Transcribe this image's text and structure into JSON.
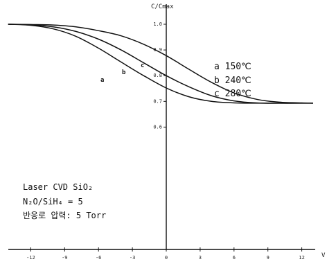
{
  "chart_data": {
    "type": "line",
    "ylabel": "C/Cmax",
    "xlabel": "V",
    "xlim": [
      -14,
      14
    ],
    "ylim": [
      0.53,
      1.03
    ],
    "xticks": [
      "-12",
      "-9",
      "-6",
      "-3",
      "0",
      "3",
      "6",
      "9",
      "12"
    ],
    "yticks": [
      "1.0",
      "0.9",
      "0.8",
      "0.7",
      "0.6"
    ],
    "series": [
      {
        "name": "a",
        "label": "a 150℃",
        "x": [
          -14,
          -12,
          -10,
          -8,
          -6,
          -4,
          -2,
          0,
          2,
          4,
          6,
          8,
          10,
          12,
          13
        ],
        "y": [
          1.0,
          0.999,
          0.997,
          0.99,
          0.975,
          0.955,
          0.922,
          0.878,
          0.825,
          0.774,
          0.733,
          0.708,
          0.697,
          0.694,
          0.693
        ]
      },
      {
        "name": "b",
        "label": "b 240℃",
        "x": [
          -14,
          -12,
          -10,
          -8,
          -6,
          -4,
          -2,
          0,
          2,
          4,
          6,
          8,
          10,
          12,
          13
        ],
        "y": [
          1.0,
          0.998,
          0.99,
          0.972,
          0.942,
          0.9,
          0.85,
          0.8,
          0.757,
          0.722,
          0.702,
          0.694,
          0.693,
          0.693,
          0.693
        ]
      },
      {
        "name": "c",
        "label": "c 280℃",
        "x": [
          -14,
          -12,
          -10,
          -8,
          -6,
          -4,
          -2,
          0,
          2,
          4,
          6,
          8,
          10,
          12,
          13
        ],
        "y": [
          1.0,
          0.996,
          0.982,
          0.953,
          0.907,
          0.853,
          0.8,
          0.752,
          0.718,
          0.7,
          0.694,
          0.693,
          0.693,
          0.693,
          0.693
        ]
      }
    ],
    "annotations": [
      "Laser CVD SiO₂",
      "N₂O/SiH₄ = 5",
      "반응로 압력: 5 Torr"
    ]
  }
}
